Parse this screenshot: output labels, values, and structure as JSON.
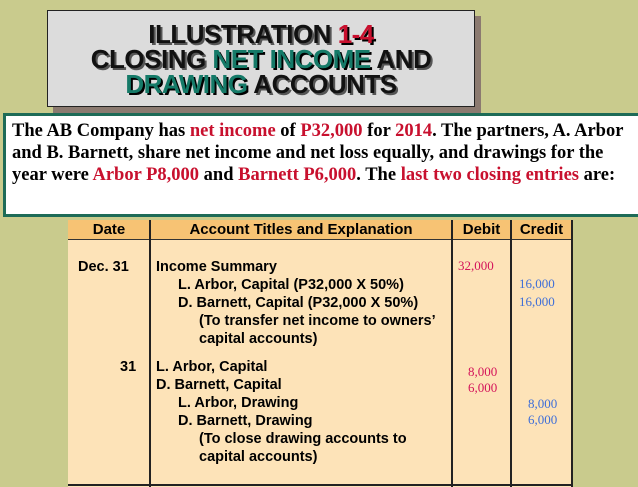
{
  "title": {
    "line1": [
      "ILLUSTRATION ",
      "1-4"
    ],
    "line2": [
      "CLOSING ",
      "NET INCOME",
      " AND"
    ],
    "line3": [
      "DRAWING",
      " ACCOUNTS"
    ]
  },
  "description": [
    "The AB Company has ",
    "net income",
    " of ",
    "P32,000",
    " for ",
    "2014",
    ".  The partners, A. Arbor and B. Barnett, share net income and net loss equally, and drawings for the year were ",
    "Arbor P8,000",
    " and ",
    "Barnett P6,000",
    ".  The ",
    "last two closing entries",
    " are:"
  ],
  "table": {
    "headers": [
      "Date",
      "Account Titles and Explanation",
      "Debit",
      "Credit"
    ],
    "entry1": {
      "date": "Dec. 31",
      "lines": [
        "Income Summary",
        "L. Arbor, Capital (P32,000 X 50%)",
        "D. Barnett, Capital (P32,000 X 50%)",
        "(To transfer net income to owners’",
        "capital accounts)"
      ],
      "debit": [
        "32,000"
      ],
      "credit": [
        "16,000",
        "16,000"
      ]
    },
    "entry2": {
      "date": "31",
      "lines": [
        "L. Arbor, Capital",
        "D. Barnett, Capital",
        "L. Arbor, Drawing",
        "D. Barnett, Drawing",
        "(To close drawing accounts to",
        "capital accounts)"
      ],
      "debit": [
        "8,000",
        "6,000"
      ],
      "credit": [
        "8,000",
        "6,000"
      ]
    }
  },
  "colors": {
    "background": "#c9cb8d",
    "accent_red": "#c8102e",
    "accent_teal": "#157a68",
    "debit": "#d4145a",
    "credit": "#3f6fd8"
  }
}
